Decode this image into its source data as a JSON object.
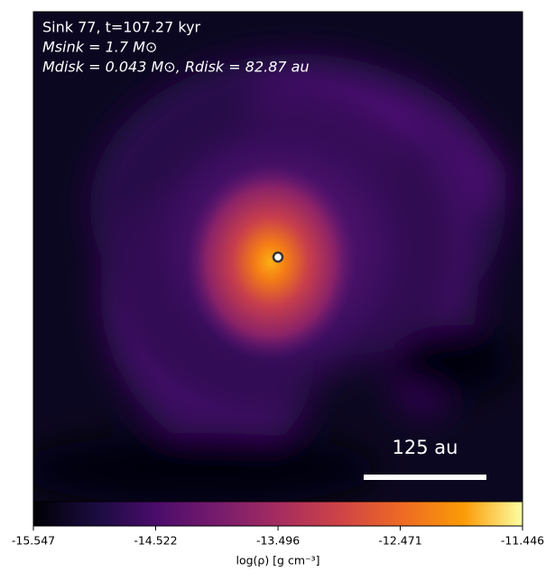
{
  "chart_data": {
    "type": "image",
    "title": "Sink 77, t=107.27 kyr",
    "subtitle": [
      "Msink = 1.7 M⊙",
      "Mdisk = 0.043 M⊙, Rdisk = 82.87 au"
    ],
    "annotations": [
      "125 au"
    ],
    "colorbar": {
      "label": "log(ρ) [g cm⁻³]",
      "clim": [
        -15.547,
        -11.446
      ],
      "ticks": [
        -15.547,
        -14.522,
        -13.496,
        -12.471,
        -11.446
      ]
    }
  }
}
